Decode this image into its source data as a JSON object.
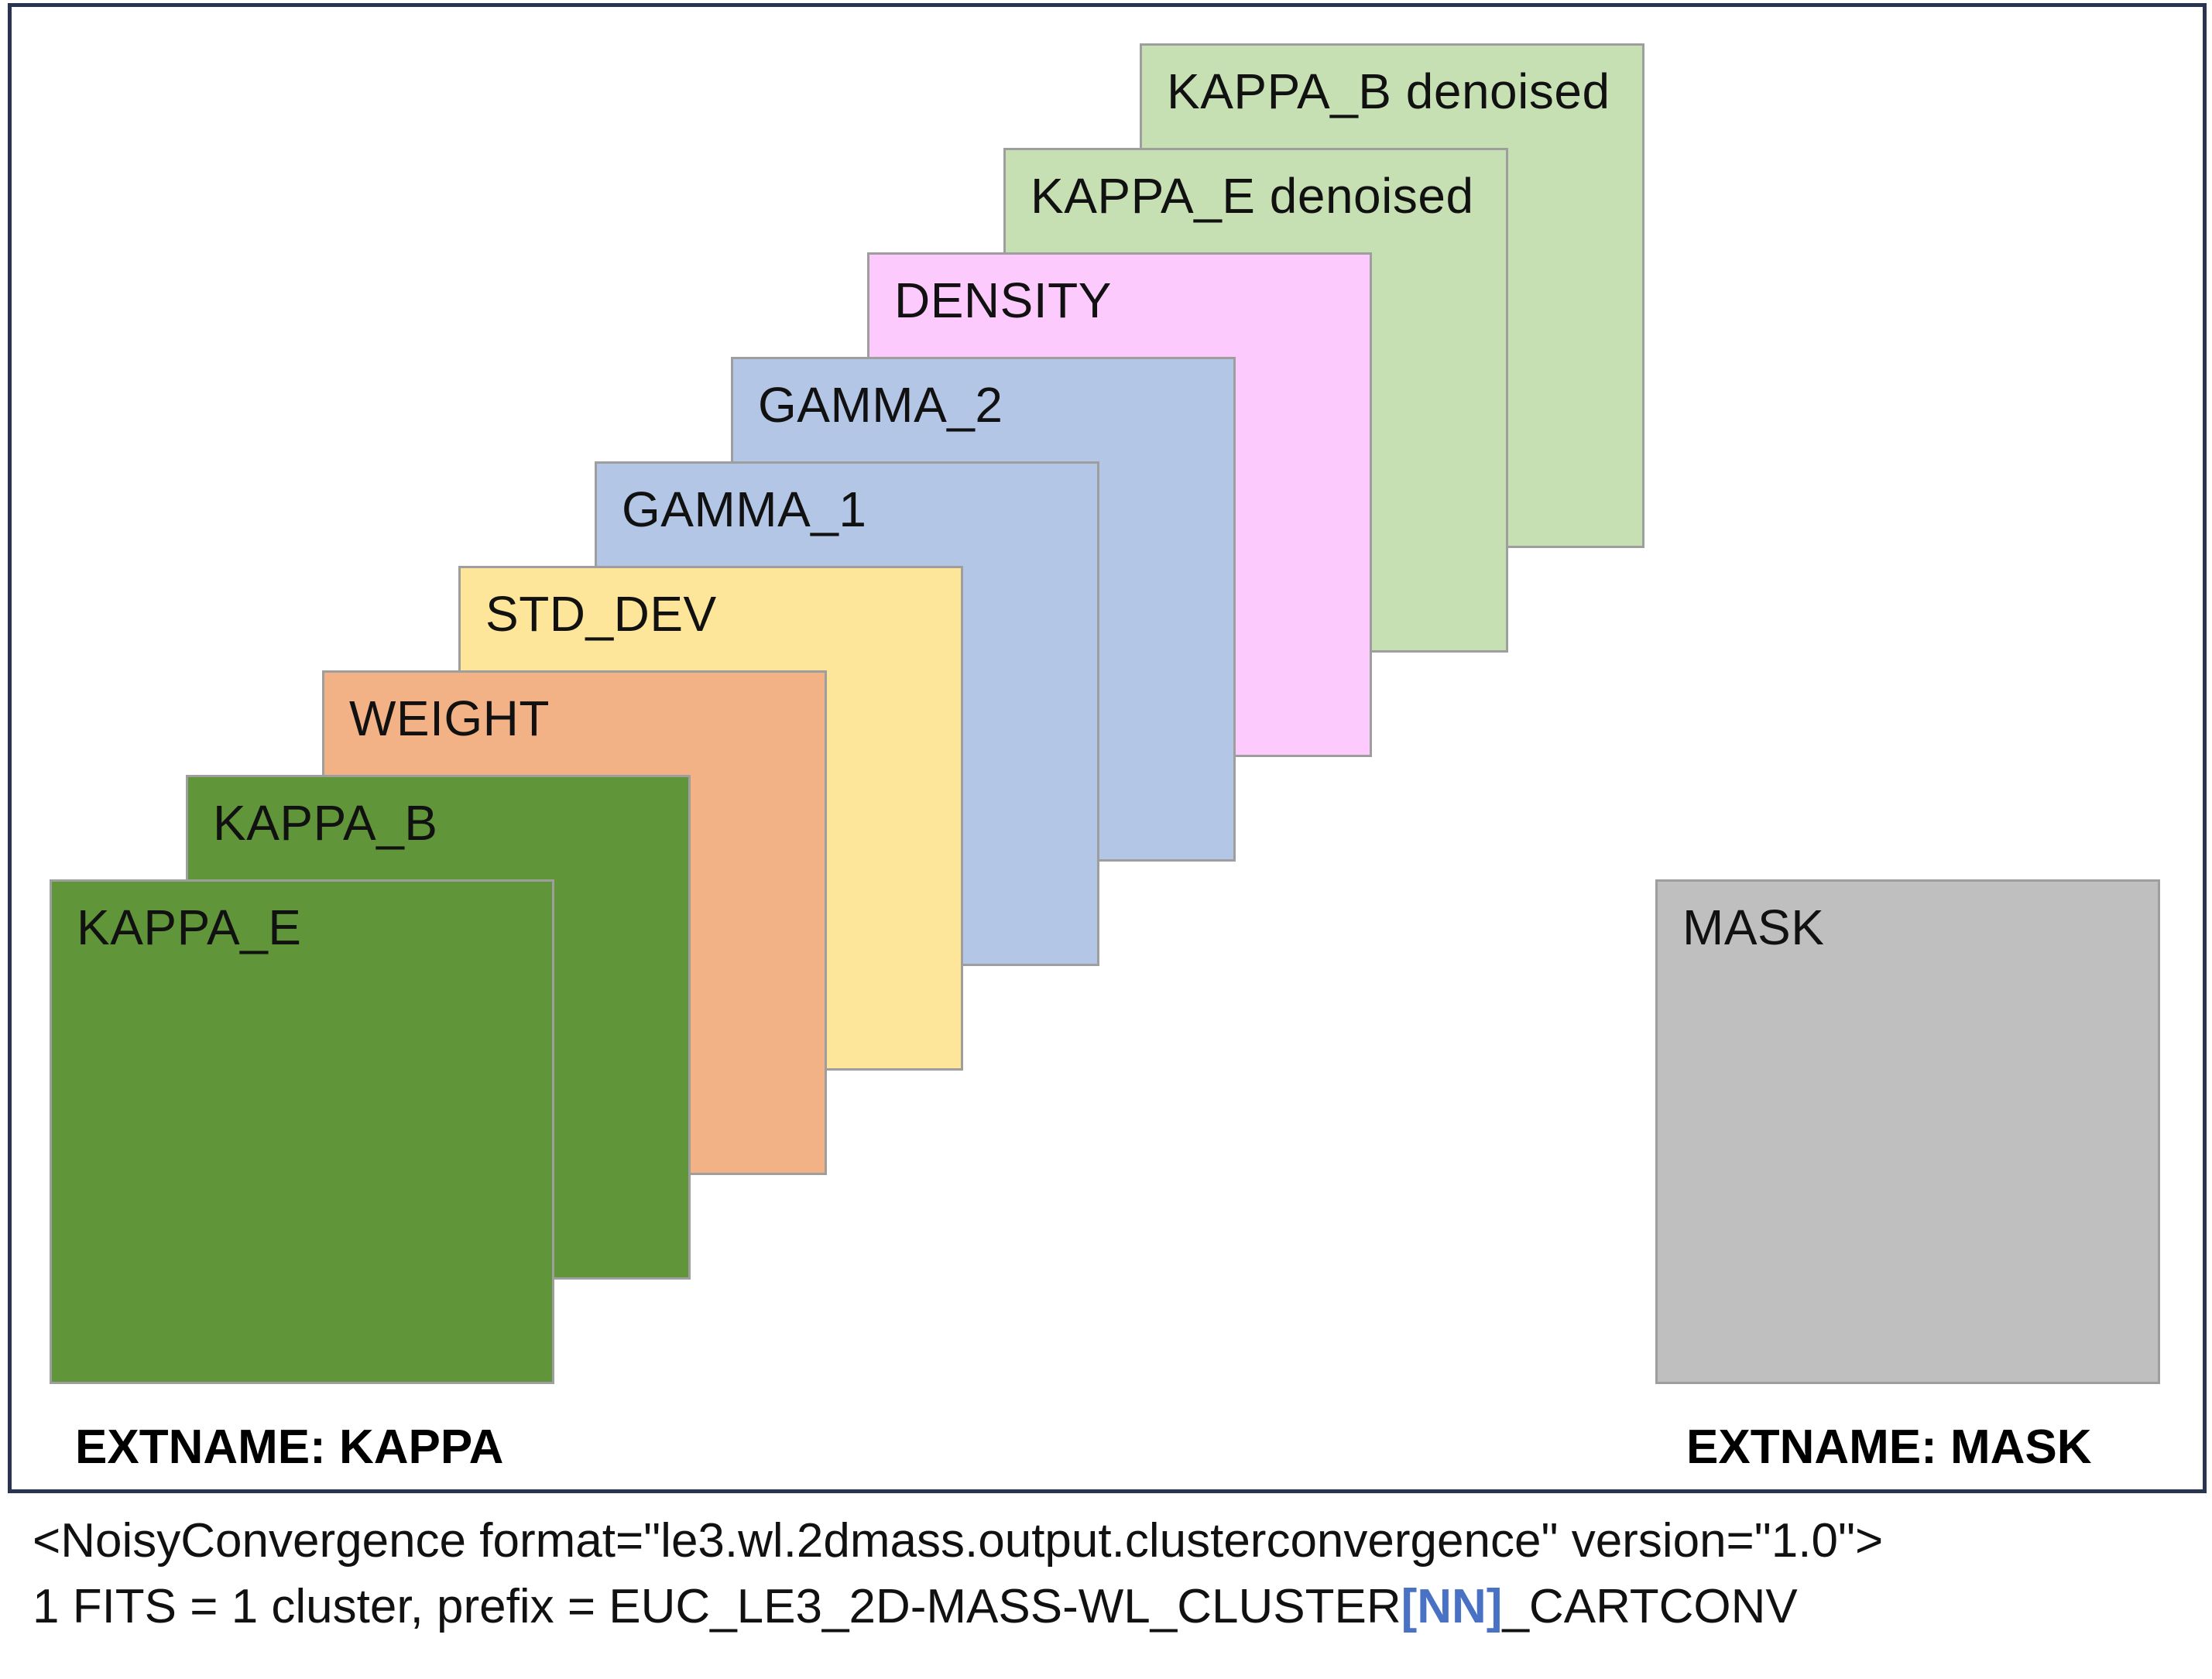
{
  "layers": [
    {
      "id": "kappa-e",
      "label": "KAPPA_E",
      "color": "#609639"
    },
    {
      "id": "kappa-b",
      "label": "KAPPA_B",
      "color": "#609639"
    },
    {
      "id": "weight",
      "label": "WEIGHT",
      "color": "#f3b186"
    },
    {
      "id": "std-dev",
      "label": "STD_DEV",
      "color": "#fde59a"
    },
    {
      "id": "gamma-1",
      "label": "GAMMA_1",
      "color": "#b3c6e6"
    },
    {
      "id": "gamma-2",
      "label": "GAMMA_2",
      "color": "#b3c6e6"
    },
    {
      "id": "density",
      "label": "DENSITY",
      "color": "#fdcafe"
    },
    {
      "id": "kappa-e-denoised",
      "label": "KAPPA_E denoised",
      "color": "#c6e0b4"
    },
    {
      "id": "kappa-b-denoised",
      "label": "KAPPA_B denoised",
      "color": "#c6e0b4"
    }
  ],
  "mask": {
    "label": "MASK",
    "color": "#bfbfbf"
  },
  "extname_kappa": "EXTNAME: KAPPA",
  "extname_mask": "EXTNAME: MASK",
  "caption": {
    "line1": "<NoisyConvergence format=\"le3.wl.2dmass.output.clusterconvergence\" version=\"1.0\">",
    "line2_prefix": "1 FITS = 1 cluster, prefix = EUC_LE3_2D-MASS-WL_CLUSTER",
    "line2_highlight": "[NN]",
    "line2_suffix": "_CARTCONV",
    "highlight_color": "#4a72c4"
  }
}
